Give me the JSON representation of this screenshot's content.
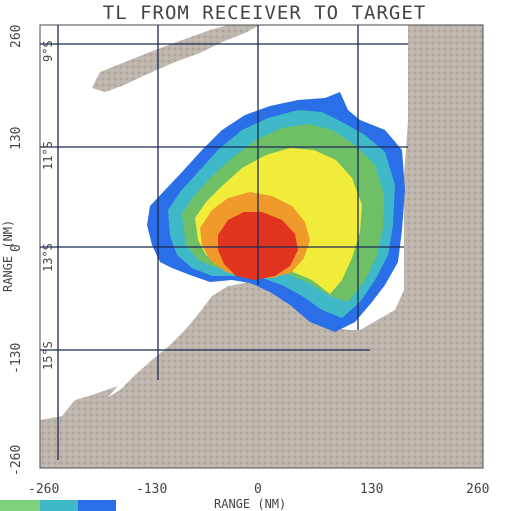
{
  "title": "TL FROM RECEIVER TO TARGET",
  "x_axis": {
    "label": "RANGE (NM)",
    "ticks": [
      "-260",
      "-130",
      "0",
      "130",
      "260"
    ]
  },
  "y_axis": {
    "label": "RANGE (NM)",
    "ticks": [
      "260",
      "130",
      "0",
      "-130",
      "-260"
    ]
  },
  "latitude_labels": [
    "9°S",
    "11°S",
    "13°S",
    "15°S"
  ],
  "colors": {
    "land": "#b9b1a8",
    "low": "#2a6ee8",
    "low_mid": "#3fb8c8",
    "mid": "#6fbf66",
    "high": "#f1ec3a",
    "higher": "#f19a2c",
    "max": "#e0341e",
    "grid": "#1c2a55"
  },
  "legend_colors": [
    "#7ed07a",
    "#3fb8c8",
    "#2a6ee8"
  ]
}
